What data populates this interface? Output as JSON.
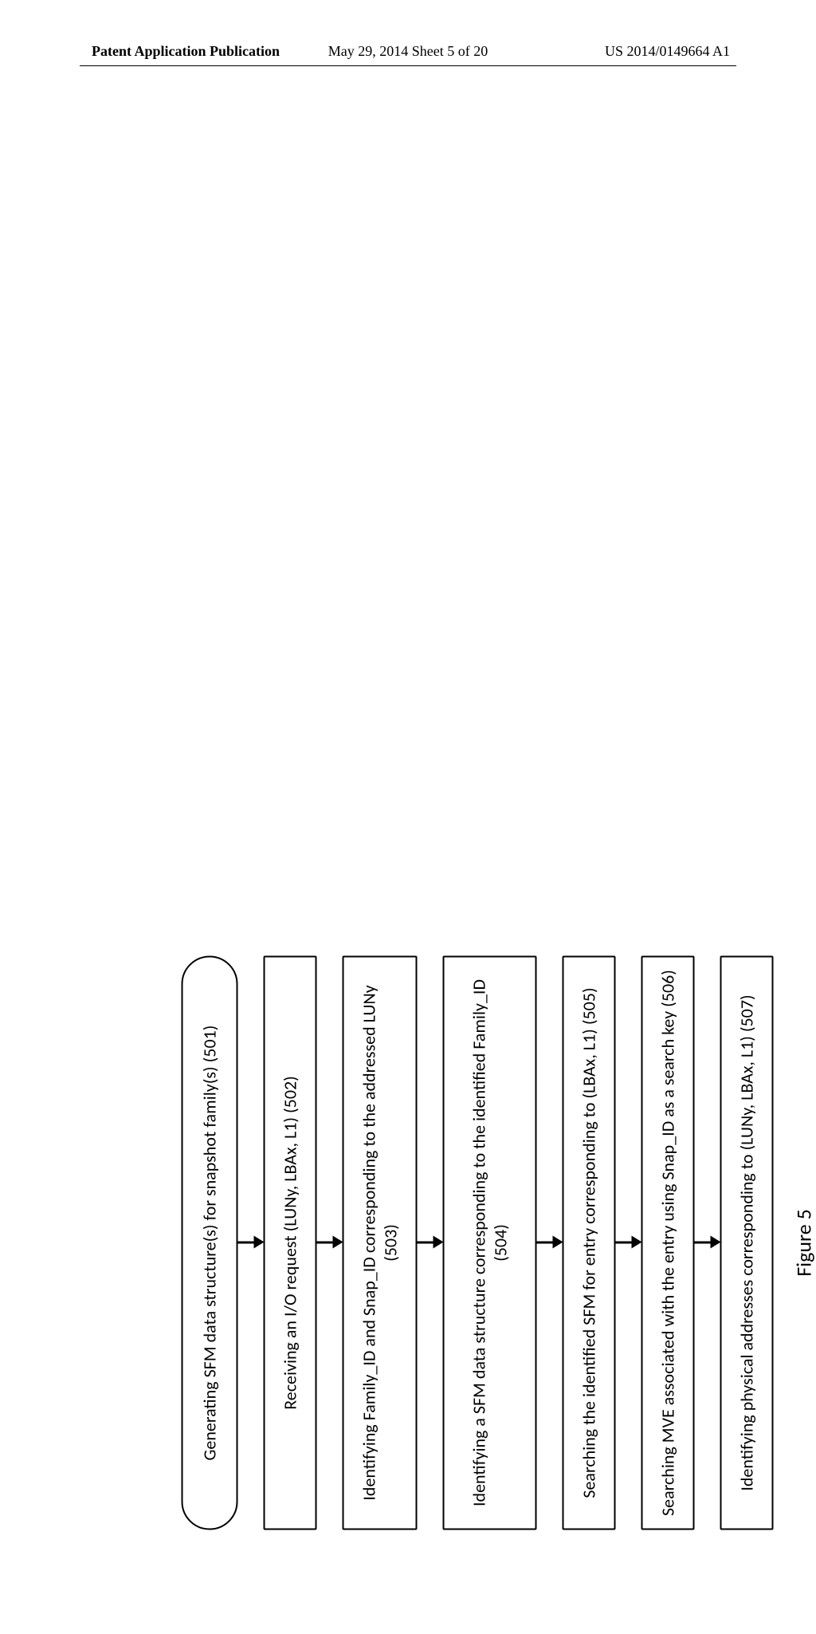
{
  "header": {
    "left": "Patent Application Publication",
    "center": "May 29, 2014  Sheet 5 of 20",
    "right": "US 2014/0149664 A1"
  },
  "flow": {
    "type": "flowchart",
    "direction": "rotated-90-ccw",
    "box_border_color": "#000000",
    "box_border_width": 2.8,
    "box_bg": "#ffffff",
    "font_family": "Calibri",
    "font_size_pt": 17,
    "figure_label": "Figure 5",
    "steps": [
      {
        "id": "s501",
        "shape": "rounded",
        "text": "Generating  SFM data structure(s) for snapshot family(s) (501)"
      },
      {
        "id": "s502",
        "shape": "rect",
        "text": "Receiving an I/O request (LUNy, LBAx, L1) (502)"
      },
      {
        "id": "s503",
        "shape": "rect",
        "text": "Identifying Family_ID and Snap_ID corresponding to the addressed LUNy (503)"
      },
      {
        "id": "s504",
        "shape": "rect",
        "text": "Identifying a SFM data structure corresponding to the identified Family_ID (504)"
      },
      {
        "id": "s505",
        "shape": "rect",
        "text": "Searching the identified SFM for entry corresponding to (LBAx, L1) (505)"
      },
      {
        "id": "s506",
        "shape": "rect",
        "text": "Searching MVE associated with the entry using Snap_ID as a search key (506)"
      },
      {
        "id": "s507",
        "shape": "rect",
        "text": "Identifying physical addresses corresponding to (LUNy, LBAx, L1) (507)"
      }
    ],
    "arrows": [
      {
        "from": "s501",
        "to": "s502"
      },
      {
        "from": "s502",
        "to": "s503"
      },
      {
        "from": "s503",
        "to": "s504"
      },
      {
        "from": "s504",
        "to": "s505"
      },
      {
        "from": "s505",
        "to": "s506"
      },
      {
        "from": "s506",
        "to": "s507"
      }
    ],
    "arrow_color": "#000000"
  }
}
